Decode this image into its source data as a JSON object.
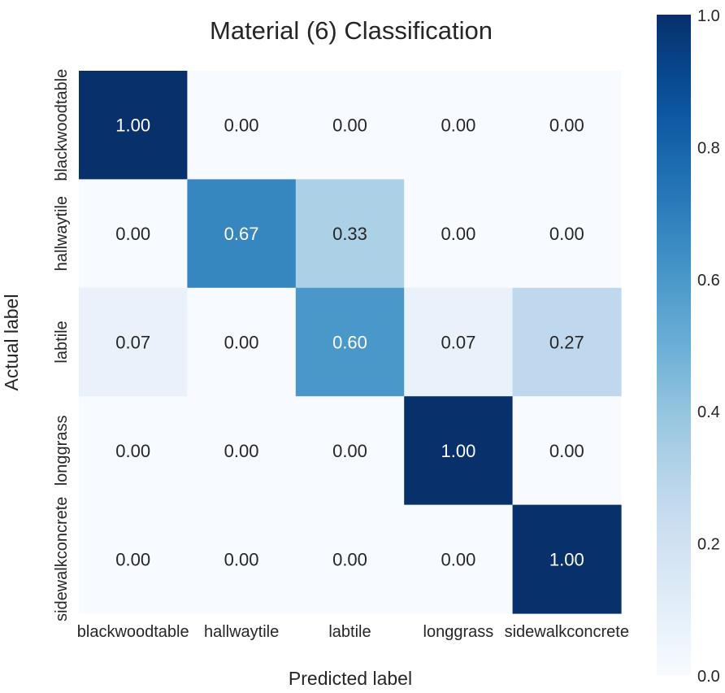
{
  "chart_data": {
    "type": "heatmap",
    "title": "Material (6) Classification",
    "xlabel": "Predicted label",
    "ylabel": "Actual label",
    "x_categories": [
      "blackwoodtable",
      "hallwaytile",
      "labtile",
      "longgrass",
      "sidewalkconcrete"
    ],
    "y_categories": [
      "blackwoodtable",
      "hallwaytile",
      "labtile",
      "longgrass",
      "sidewalkconcrete"
    ],
    "values": [
      [
        1.0,
        0.0,
        0.0,
        0.0,
        0.0
      ],
      [
        0.0,
        0.67,
        0.33,
        0.0,
        0.0
      ],
      [
        0.07,
        0.0,
        0.6,
        0.07,
        0.27
      ],
      [
        0.0,
        0.0,
        0.0,
        1.0,
        0.0
      ],
      [
        0.0,
        0.0,
        0.0,
        0.0,
        1.0
      ]
    ],
    "value_format": "0.00",
    "colormap": "Blues",
    "vmin": 0.0,
    "vmax": 1.0,
    "colorbar": {
      "ticks": [
        0.0,
        0.2,
        0.4,
        0.6,
        0.8,
        1.0
      ],
      "tick_labels": [
        "0.0",
        "0.2",
        "0.4",
        "0.6",
        "0.8",
        "1.0"
      ]
    },
    "colors": {
      "low": "#f7fbff",
      "high": "#08306b",
      "text_dark": "#262626",
      "text_light": "#ffffff"
    }
  }
}
